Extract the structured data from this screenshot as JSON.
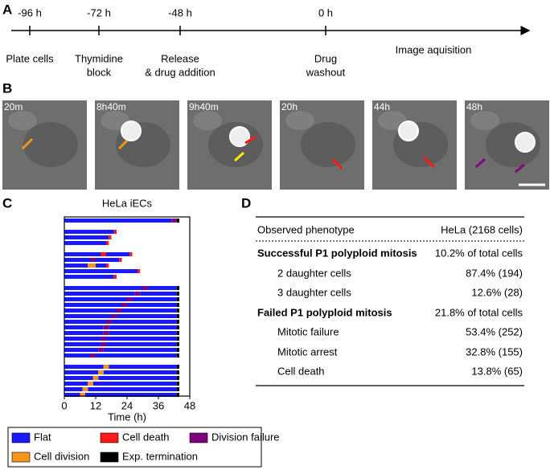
{
  "panels": {
    "a": "A",
    "b": "B",
    "c": "C",
    "d": "D"
  },
  "timeline": {
    "points": [
      {
        "time": "-96 h",
        "event": "Plate cells"
      },
      {
        "time": "-72 h",
        "event": "Thymidine",
        "event2": "block"
      },
      {
        "time": "-48 h",
        "event": "Release",
        "event2": "& drug addition"
      },
      {
        "time": "0 h",
        "event": "Drug",
        "event2": "washout"
      }
    ],
    "tail": "Image aquisition"
  },
  "images": {
    "labels": [
      "20m",
      "8h40m",
      "9h40m",
      "20h",
      "44h",
      "48h"
    ]
  },
  "chart_data": {
    "type": "timeline",
    "title": "HeLa iECs",
    "xlabel": "Time (h)",
    "xlim": [
      0,
      48
    ],
    "xticks": [
      0,
      12,
      24,
      36,
      48
    ],
    "series": [
      {
        "name": "Flat",
        "color": "#1a1aff",
        "segments": [
          [
            0,
            0,
            41
          ],
          [
            2,
            0,
            19
          ],
          [
            3,
            0,
            17
          ],
          [
            4,
            0,
            16
          ],
          [
            6,
            0,
            14
          ],
          [
            6,
            16,
            25
          ],
          [
            7,
            0,
            10
          ],
          [
            7,
            12,
            21
          ],
          [
            8,
            0,
            9
          ],
          [
            8,
            12,
            16
          ],
          [
            9,
            0,
            28
          ],
          [
            10,
            0,
            19
          ],
          [
            12,
            0,
            30
          ],
          [
            12,
            32,
            43
          ],
          [
            13,
            0,
            27
          ],
          [
            13,
            29,
            43
          ],
          [
            14,
            0,
            24
          ],
          [
            14,
            26,
            43
          ],
          [
            15,
            0,
            22
          ],
          [
            15,
            24,
            43
          ],
          [
            16,
            0,
            20
          ],
          [
            16,
            22,
            43
          ],
          [
            17,
            0,
            18
          ],
          [
            17,
            20,
            43
          ],
          [
            18,
            0,
            16
          ],
          [
            18,
            18,
            43
          ],
          [
            19,
            0,
            15
          ],
          [
            19,
            17,
            43
          ],
          [
            20,
            0,
            15
          ],
          [
            20,
            17,
            43
          ],
          [
            21,
            0,
            14
          ],
          [
            21,
            16,
            43
          ],
          [
            22,
            0,
            14
          ],
          [
            22,
            16,
            43
          ],
          [
            23,
            0,
            13
          ],
          [
            23,
            15,
            43
          ],
          [
            24,
            0,
            10
          ],
          [
            24,
            12,
            43
          ],
          [
            26,
            0,
            15
          ],
          [
            26,
            17,
            43
          ],
          [
            27,
            0,
            13
          ],
          [
            27,
            15,
            43
          ],
          [
            28,
            0,
            11
          ],
          [
            28,
            13,
            43
          ],
          [
            29,
            0,
            9
          ],
          [
            29,
            11,
            43
          ],
          [
            30,
            0,
            7
          ],
          [
            30,
            9,
            43
          ],
          [
            31,
            0,
            6
          ],
          [
            31,
            8,
            43
          ]
        ]
      },
      {
        "name": "Cell death",
        "color": "#ff1a1a",
        "segments": [
          [
            2,
            19,
            20
          ],
          [
            3,
            17,
            18
          ],
          [
            4,
            16,
            17
          ],
          [
            6,
            14,
            16
          ],
          [
            6,
            25,
            26
          ],
          [
            7,
            21,
            22
          ],
          [
            8,
            16,
            17
          ],
          [
            9,
            28,
            29
          ],
          [
            10,
            19,
            20
          ]
        ]
      },
      {
        "name": "Division failure",
        "color": "#800080",
        "segments": [
          [
            0,
            41,
            43
          ],
          [
            7,
            10,
            12
          ],
          [
            12,
            30,
            32
          ],
          [
            13,
            27,
            29
          ],
          [
            14,
            24,
            26
          ],
          [
            15,
            22,
            24
          ],
          [
            16,
            20,
            22
          ],
          [
            17,
            18,
            20
          ],
          [
            18,
            16,
            18
          ],
          [
            19,
            15,
            17
          ],
          [
            20,
            15,
            17
          ],
          [
            21,
            14,
            16
          ],
          [
            22,
            14,
            16
          ],
          [
            23,
            13,
            15
          ],
          [
            24,
            10,
            12
          ]
        ]
      },
      {
        "name": "Cell division",
        "color": "#f7941d",
        "segments": [
          [
            8,
            9,
            12
          ],
          [
            26,
            15,
            17
          ],
          [
            27,
            13,
            15
          ],
          [
            28,
            11,
            13
          ],
          [
            29,
            9,
            11
          ],
          [
            30,
            7,
            9
          ],
          [
            31,
            6,
            8
          ]
        ]
      },
      {
        "name": "Exp. termination",
        "color": "#000000",
        "segments": [
          [
            0,
            43,
            44
          ],
          [
            12,
            43,
            44
          ],
          [
            13,
            43,
            44
          ],
          [
            14,
            43,
            44
          ],
          [
            15,
            43,
            44
          ],
          [
            16,
            43,
            44
          ],
          [
            17,
            43,
            44
          ],
          [
            18,
            43,
            44
          ],
          [
            19,
            43,
            44
          ],
          [
            20,
            43,
            44
          ],
          [
            21,
            43,
            44
          ],
          [
            22,
            43,
            44
          ],
          [
            23,
            43,
            44
          ],
          [
            24,
            43,
            44
          ],
          [
            26,
            43,
            44
          ],
          [
            27,
            43,
            44
          ],
          [
            28,
            43,
            44
          ],
          [
            29,
            43,
            44
          ],
          [
            30,
            43,
            44
          ],
          [
            31,
            43,
            44
          ]
        ]
      }
    ]
  },
  "table": {
    "header": [
      "Observed phenotype",
      "HeLa (2168 cells)"
    ],
    "rows": [
      [
        "Successful P1 polyploid mitosis",
        "10.2% of total cells"
      ],
      [
        "2 daughter cells",
        "87.4% (194)"
      ],
      [
        "3 daughter cells",
        "12.6% (28)"
      ],
      [
        "Failed P1 polyploid mitosis",
        "21.8% of total cells"
      ],
      [
        "Mitotic failure",
        "53.4% (252)"
      ],
      [
        "Mitotic arrest",
        "32.8% (155)"
      ],
      [
        "Cell death",
        "13.8% (65)"
      ]
    ]
  }
}
